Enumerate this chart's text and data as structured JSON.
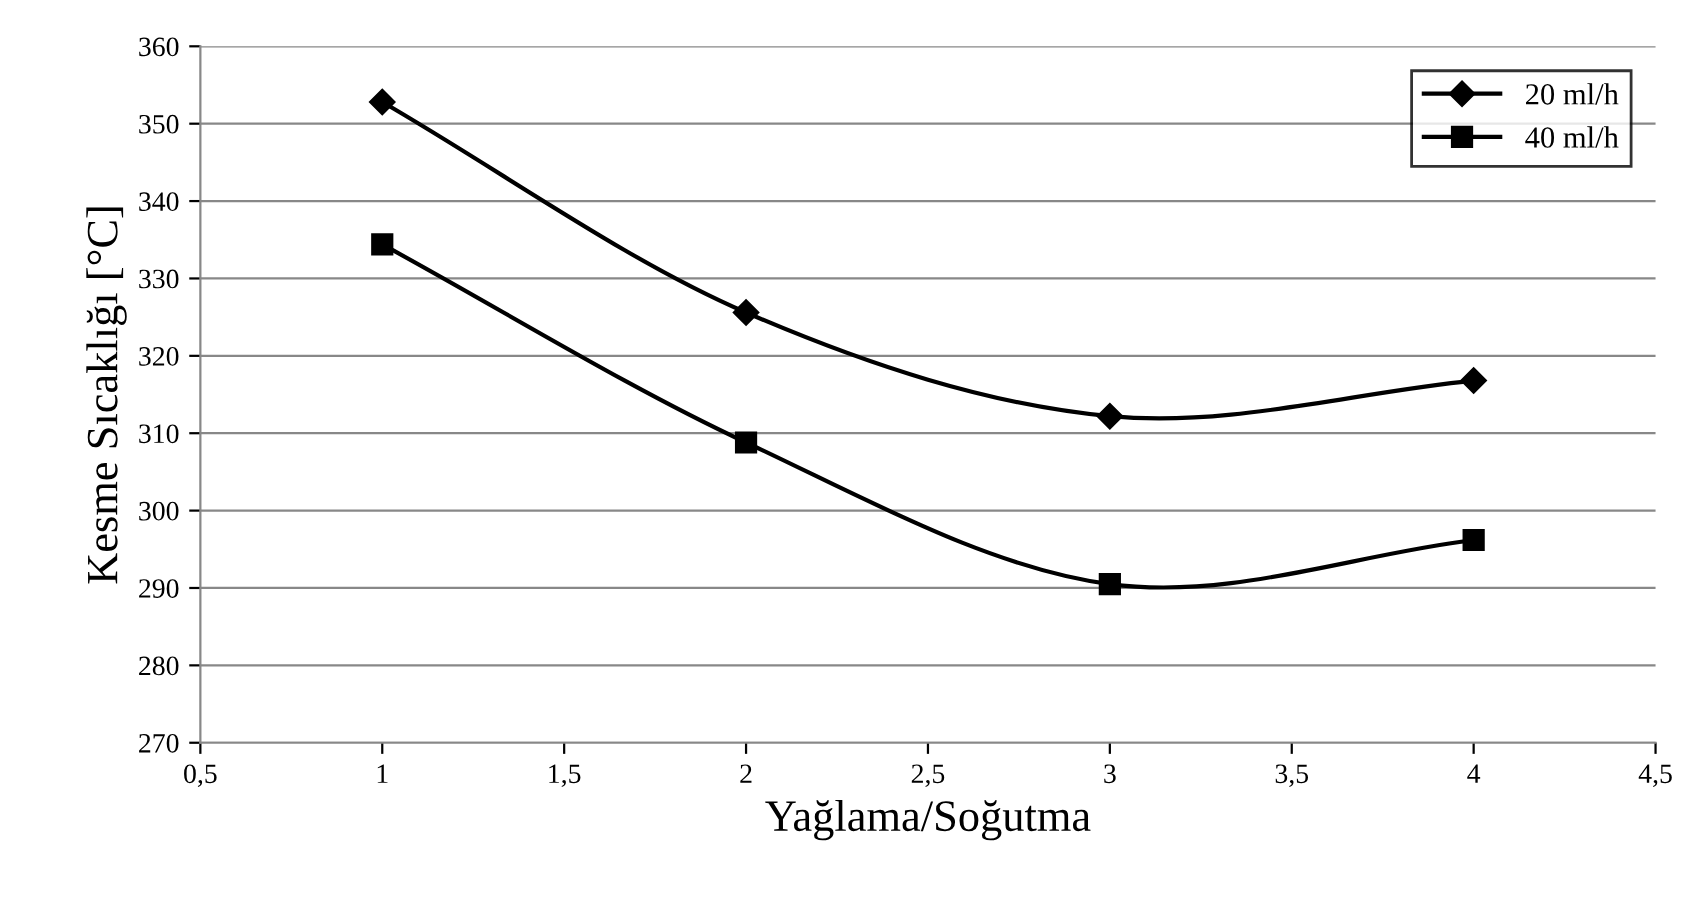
{
  "chart_data": {
    "type": "line",
    "xlabel": "Yağlama/Soğutma",
    "ylabel": "Kesme Sıcaklığı [°C]",
    "x": [
      1,
      2,
      3,
      4
    ],
    "series": [
      {
        "name": "20 ml/h",
        "color": "#000000",
        "marker": "diamond",
        "values": [
          352.8,
          325.6,
          312.2,
          316.8
        ]
      },
      {
        "name": "40 ml/h",
        "color": "#000000",
        "marker": "square",
        "values": [
          334.4,
          308.8,
          290.5,
          296.2
        ]
      }
    ],
    "xlim": [
      0.5,
      4.5
    ],
    "xticks": [
      {
        "value": 0.5,
        "label": "0,5"
      },
      1,
      {
        "value": 1.5,
        "label": "1,5"
      },
      2,
      {
        "value": 2.5,
        "label": "2,5"
      },
      3,
      {
        "value": 3.5,
        "label": "3,5"
      },
      4,
      {
        "value": 4.5,
        "label": "4,5"
      }
    ],
    "ylim": [
      270,
      360
    ],
    "yticks": [
      270,
      280,
      290,
      300,
      310,
      320,
      330,
      340,
      350,
      360
    ],
    "grid": "y",
    "legend": "top right",
    "line_style": "solid"
  }
}
